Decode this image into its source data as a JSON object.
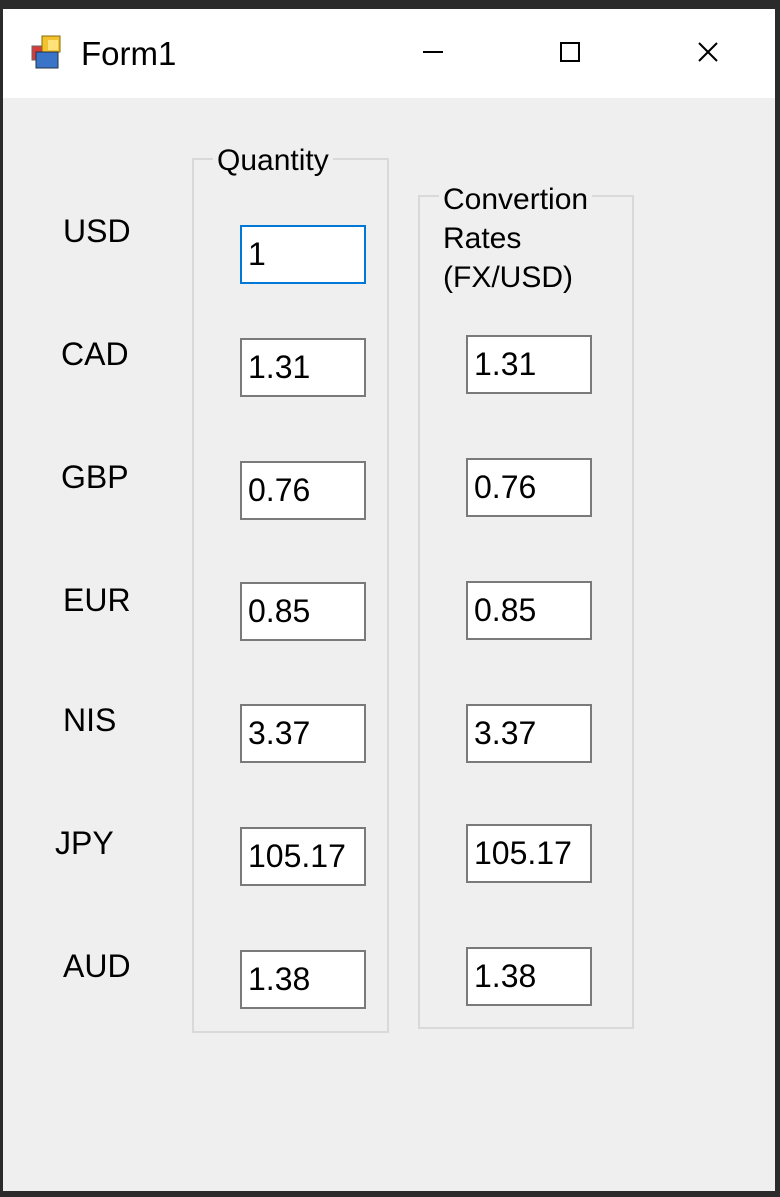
{
  "window": {
    "title": "Form1"
  },
  "currencies": [
    {
      "code": "USD",
      "quantity": "1",
      "rate": ""
    },
    {
      "code": "CAD",
      "quantity": "1.31",
      "rate": "1.31"
    },
    {
      "code": "GBP",
      "quantity": "0.76",
      "rate": "0.76"
    },
    {
      "code": "EUR",
      "quantity": "0.85",
      "rate": "0.85"
    },
    {
      "code": "NIS",
      "quantity": "3.37",
      "rate": "3.37"
    },
    {
      "code": "JPY",
      "quantity": "105.17",
      "rate": "105.17"
    },
    {
      "code": "AUD",
      "quantity": "1.38",
      "rate": "1.38"
    }
  ],
  "groups": {
    "quantity_title": "Quantity",
    "rates_title_line1": "Convertion",
    "rates_title_line2": "Rates",
    "rates_title_line3": "(FX/USD)"
  },
  "colors": {
    "focus_border": "#0078d7",
    "window_bg": "#efefef"
  }
}
